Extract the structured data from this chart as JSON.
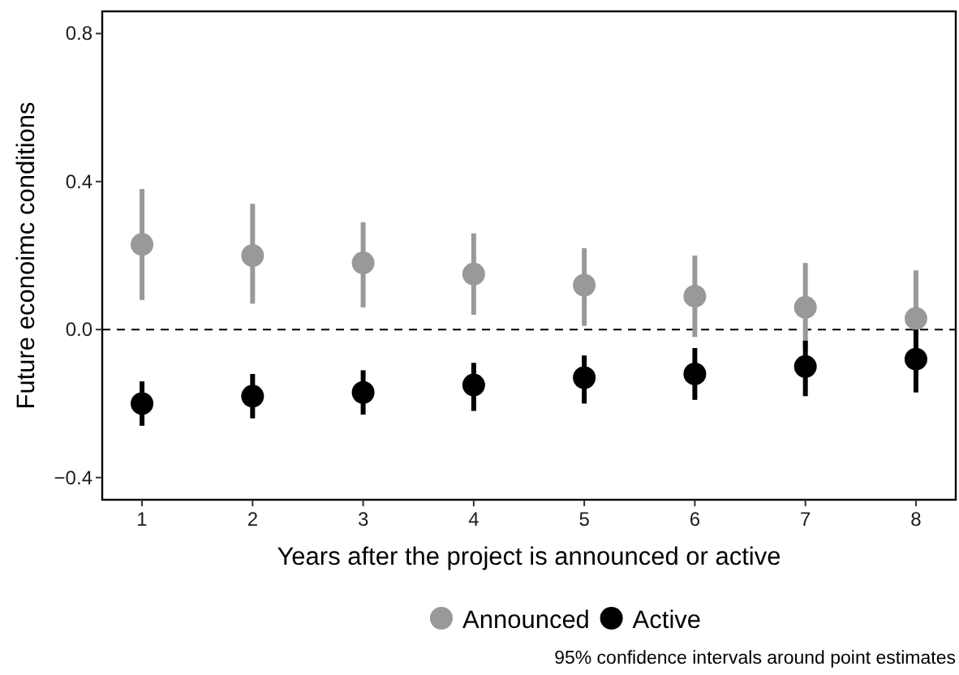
{
  "chart_data": {
    "type": "scatter",
    "xlabel": "Years after the project is announced or active",
    "ylabel": "Future econoimc conditions",
    "x": [
      1,
      2,
      3,
      4,
      5,
      6,
      7,
      8
    ],
    "series": [
      {
        "name": "Announced",
        "color": "#999999",
        "values": [
          0.23,
          0.2,
          0.18,
          0.15,
          0.12,
          0.09,
          0.06,
          0.03
        ],
        "errors": [
          [
            0.08,
            0.38
          ],
          [
            0.07,
            0.34
          ],
          [
            0.06,
            0.29
          ],
          [
            0.04,
            0.26
          ],
          [
            0.01,
            0.22
          ],
          [
            -0.02,
            0.2
          ],
          [
            -0.05,
            0.18
          ],
          [
            -0.1,
            0.16
          ]
        ]
      },
      {
        "name": "Active",
        "color": "#000000",
        "values": [
          -0.2,
          -0.18,
          -0.17,
          -0.15,
          -0.13,
          -0.12,
          -0.1,
          -0.08
        ],
        "errors": [
          [
            -0.26,
            -0.14
          ],
          [
            -0.24,
            -0.12
          ],
          [
            -0.23,
            -0.11
          ],
          [
            -0.22,
            -0.09
          ],
          [
            -0.2,
            -0.07
          ],
          [
            -0.19,
            -0.05
          ],
          [
            -0.18,
            -0.03
          ],
          [
            -0.17,
            0.0
          ]
        ]
      }
    ],
    "xlim": [
      0.64,
      8.36
    ],
    "xticks": [
      1,
      2,
      3,
      4,
      5,
      6,
      7,
      8
    ],
    "ylim": [
      -0.46,
      0.86
    ],
    "yticks": [
      {
        "value": -0.4,
        "label": "−0.4"
      },
      {
        "value": 0,
        "label": "0.0"
      },
      {
        "value": 0.4,
        "label": "0.4"
      },
      {
        "value": 0.8,
        "label": "0.8"
      }
    ],
    "ref_lines": [
      {
        "axis": "y",
        "value": 0,
        "line_style": "dashed",
        "color": "#000000"
      }
    ],
    "marker": "circle",
    "legend": "bottom",
    "grid": false,
    "annotations": [
      "95% confidence intervals around point estimates"
    ]
  }
}
